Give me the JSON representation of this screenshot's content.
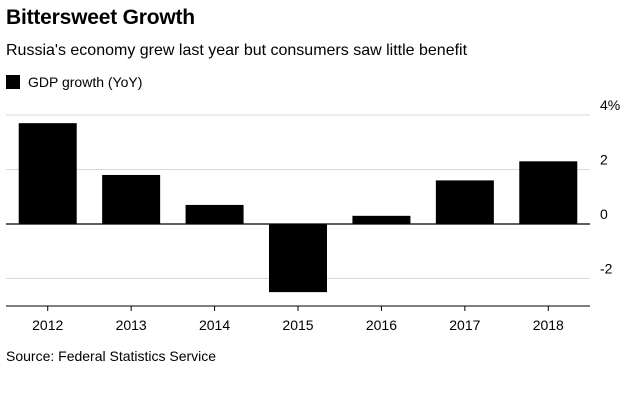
{
  "chart_data": {
    "type": "bar",
    "title": "Bittersweet Growth",
    "subtitle": "Russia's economy grew last year but consumers saw little benefit",
    "categories": [
      "2012",
      "2013",
      "2014",
      "2015",
      "2016",
      "2017",
      "2018"
    ],
    "series": [
      {
        "name": "GDP growth (YoY)",
        "values": [
          3.7,
          1.8,
          0.7,
          -2.5,
          0.3,
          1.6,
          2.3
        ]
      }
    ],
    "ylim": [
      -3,
      4
    ],
    "yticks": [
      4,
      2,
      0,
      -2
    ],
    "ytick_labels": [
      "4%",
      "2",
      "0",
      "-2"
    ],
    "xlabel": "",
    "ylabel": "",
    "grid": true,
    "legend_position": "top-left",
    "bar_color": "#000000",
    "grid_color": "#d9d9d9",
    "source": "Source: Federal Statistics Service"
  }
}
